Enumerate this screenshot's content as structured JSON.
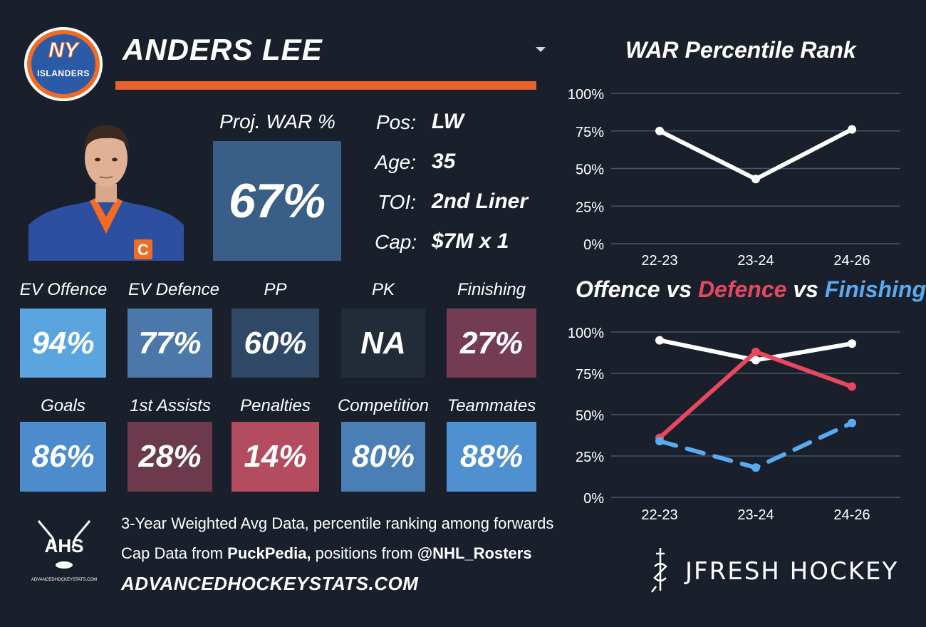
{
  "player": {
    "name": "ANDERS LEE",
    "team_logo_text": "NY",
    "team_logo_subtext": "ISLANDERS",
    "jersey_letter": "C",
    "proj_war_label": "Proj. WAR %",
    "proj_war_value": "67%"
  },
  "info": [
    {
      "label": "Pos:",
      "value": "LW"
    },
    {
      "label": "Age:",
      "value": "35"
    },
    {
      "label": "TOI:",
      "value": "2nd Liner"
    },
    {
      "label": "Cap:",
      "value": "$7M x 1"
    }
  ],
  "tiles_row1": [
    {
      "label": "EV Offence",
      "value": "94%",
      "color": "#5aa4e0"
    },
    {
      "label": "EV Defence",
      "value": "77%",
      "color": "#4b78a8"
    },
    {
      "label": "PP",
      "value": "60%",
      "color": "#2f4866"
    },
    {
      "label": "PK",
      "value": "NA",
      "color": "#222b38"
    },
    {
      "label": "Finishing",
      "value": "27%",
      "color": "#743c52"
    }
  ],
  "tiles_row2": [
    {
      "label": "Goals",
      "value": "86%",
      "color": "#4c8ccc"
    },
    {
      "label": "1st Assists",
      "value": "28%",
      "color": "#6d3a4d"
    },
    {
      "label": "Penalties",
      "value": "14%",
      "color": "#b44c60"
    },
    {
      "label": "Competition",
      "value": "80%",
      "color": "#4a7fb6"
    },
    {
      "label": "Teammates",
      "value": "88%",
      "color": "#4f90d0"
    }
  ],
  "footer": {
    "line1": "3-Year Weighted Avg Data, percentile ranking among forwards",
    "line2_prefix": "Cap Data from ",
    "line2_bold1": "PuckPedia,",
    "line2_mid": " positions from ",
    "line2_bold2": "@NHL_Rosters",
    "site": "ADVANCEDHOCKEYSTATS.COM",
    "ahs_logo_text": "AHS",
    "ahs_logo_url": "ADVANCEDHOCKEYSTATS.COM",
    "brand": "JFRESH HOCKEY"
  },
  "colors": {
    "offence": "#ffffff",
    "defence": "#e8475f",
    "finishing": "#5aaaf0",
    "accent_bar": "#e8612c"
  },
  "chart_data": [
    {
      "type": "line",
      "title": "WAR Percentile Rank",
      "x": [
        "22-23",
        "23-24",
        "24-26"
      ],
      "yticks": [
        "100%",
        "75%",
        "50%",
        "25%",
        "0%"
      ],
      "ylim": [
        0,
        100
      ],
      "grid": true,
      "series": [
        {
          "values": [
            75,
            43,
            76
          ],
          "color": "#ffffff",
          "dash": false
        }
      ]
    },
    {
      "type": "line",
      "title_parts": [
        {
          "text": "Offence",
          "color": "#ffffff"
        },
        {
          "text": " vs ",
          "color": "#ffffff"
        },
        {
          "text": "Defence",
          "color": "#e8475f"
        },
        {
          "text": " vs ",
          "color": "#ffffff"
        },
        {
          "text": "Finishing",
          "color": "#5aaaf0"
        }
      ],
      "x": [
        "22-23",
        "23-24",
        "24-26"
      ],
      "yticks": [
        "100%",
        "75%",
        "50%",
        "25%",
        "0%"
      ],
      "ylim": [
        0,
        100
      ],
      "grid": true,
      "series": [
        {
          "name": "Offence",
          "values": [
            95,
            83,
            93
          ],
          "color": "#ffffff",
          "dash": false
        },
        {
          "name": "Defence",
          "values": [
            36,
            88,
            67
          ],
          "color": "#e8475f",
          "dash": false
        },
        {
          "name": "Finishing",
          "values": [
            34,
            18,
            45
          ],
          "color": "#5aaaf0",
          "dash": true
        }
      ]
    }
  ]
}
